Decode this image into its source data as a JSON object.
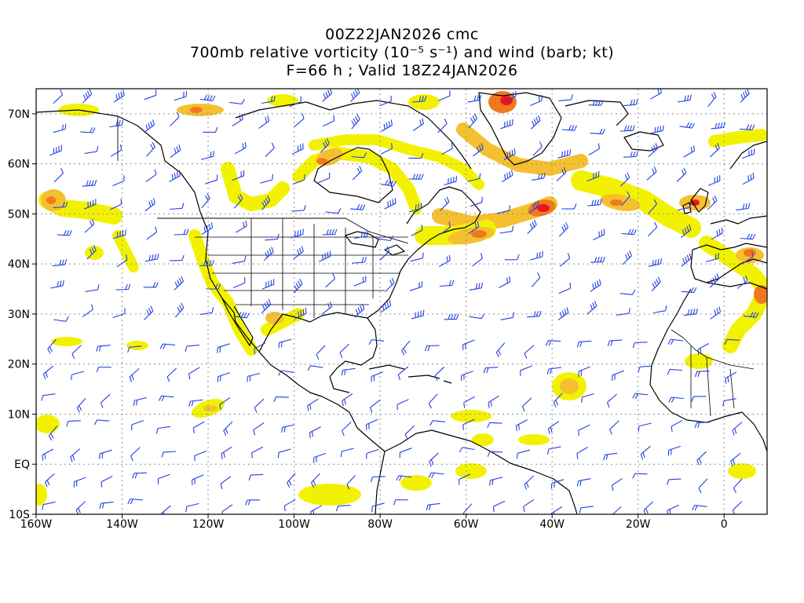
{
  "title": {
    "line1": "00Z22JAN2026 cmc",
    "line2": "700mb relative vorticity (10⁻⁵ s⁻¹) and wind (barb; kt)",
    "line3": "F=66 h ; Valid 18Z24JAN2026"
  },
  "map": {
    "lon_range": [
      -160,
      10
    ],
    "lat_range": [
      -10,
      75
    ],
    "lon_ticks": [
      {
        "value": -160,
        "label": "160W"
      },
      {
        "value": -140,
        "label": "140W"
      },
      {
        "value": -120,
        "label": "120W"
      },
      {
        "value": -100,
        "label": "100W"
      },
      {
        "value": -80,
        "label": "80W"
      },
      {
        "value": -60,
        "label": "60W"
      },
      {
        "value": -40,
        "label": "40W"
      },
      {
        "value": -20,
        "label": "20W"
      },
      {
        "value": 0,
        "label": "0"
      }
    ],
    "lat_ticks": [
      {
        "value": 70,
        "label": "70N"
      },
      {
        "value": 60,
        "label": "60N"
      },
      {
        "value": 50,
        "label": "50N"
      },
      {
        "value": 40,
        "label": "40N"
      },
      {
        "value": 30,
        "label": "30N"
      },
      {
        "value": 20,
        "label": "20N"
      },
      {
        "value": 10,
        "label": "10N"
      },
      {
        "value": 0,
        "label": "EQ"
      },
      {
        "value": -10,
        "label": "10S"
      }
    ],
    "grid": true,
    "colors": {
      "low": "#f2f200",
      "mid": "#f5c030",
      "high": "#f07820",
      "peak": "#e81818",
      "barb": "#2040e0",
      "coast": "#000000",
      "grid": "#909090"
    }
  }
}
